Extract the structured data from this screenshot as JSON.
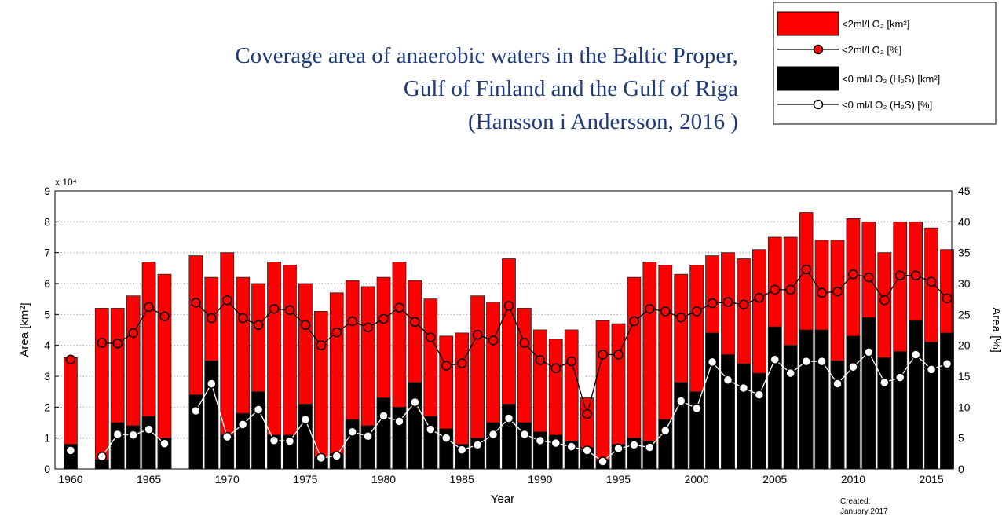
{
  "chart_data": {
    "type": "bar",
    "title": [
      "Coverage area of anaerobic waters in the Baltic Proper,",
      "Gulf of Finland and the Gulf of Riga",
      "(Hansson i Andersson, 2016 )"
    ],
    "x": [
      1960,
      1961,
      1962,
      1963,
      1964,
      1965,
      1966,
      1967,
      1968,
      1969,
      1970,
      1971,
      1972,
      1973,
      1974,
      1975,
      1976,
      1977,
      1978,
      1979,
      1980,
      1981,
      1982,
      1983,
      1984,
      1985,
      1986,
      1987,
      1988,
      1989,
      1990,
      1991,
      1992,
      1993,
      1994,
      1995,
      1996,
      1997,
      1998,
      1999,
      2000,
      2001,
      2002,
      2003,
      2004,
      2005,
      2006,
      2007,
      2008,
      2009,
      2010,
      2011,
      2012,
      2013,
      2014,
      2015,
      2016
    ],
    "series": [
      {
        "name": "<2ml/l O₂ [km²]",
        "type": "bar",
        "color": "#ff0000",
        "axis": "y",
        "values": [
          3.6,
          null,
          5.2,
          5.2,
          5.6,
          6.7,
          6.3,
          null,
          6.9,
          6.2,
          7.0,
          6.2,
          6.0,
          6.7,
          6.6,
          6.0,
          5.1,
          5.7,
          6.1,
          5.9,
          6.2,
          6.7,
          6.1,
          5.5,
          4.3,
          4.4,
          5.6,
          5.4,
          6.8,
          5.2,
          4.5,
          4.2,
          4.5,
          2.3,
          4.8,
          4.7,
          6.2,
          6.7,
          6.6,
          6.3,
          6.6,
          6.9,
          7.0,
          6.8,
          7.1,
          7.5,
          7.5,
          8.3,
          7.4,
          7.4,
          8.1,
          8.0,
          7.0,
          8.0,
          8.0,
          7.8,
          7.1
        ]
      },
      {
        "name": "<2ml/l O₂ [%]",
        "type": "line",
        "color": "#ff0000",
        "axis": "y2",
        "values": [
          17.7,
          null,
          20.4,
          20.3,
          22.0,
          26.2,
          24.7,
          null,
          26.9,
          24.4,
          27.3,
          24.4,
          23.3,
          25.9,
          25.7,
          23.3,
          20.0,
          22.1,
          23.9,
          22.9,
          24.3,
          26.1,
          23.8,
          21.3,
          16.7,
          17.1,
          21.7,
          20.8,
          26.4,
          20.4,
          17.6,
          16.3,
          17.4,
          8.9,
          18.5,
          18.5,
          23.9,
          25.9,
          25.5,
          24.5,
          25.5,
          26.8,
          27.0,
          26.6,
          27.7,
          29.0,
          29.0,
          32.3,
          28.5,
          28.7,
          31.5,
          31.0,
          27.3,
          31.3,
          31.3,
          30.3,
          27.6
        ]
      },
      {
        "name": "<0 ml/l O₂ (H₂S) [km²]",
        "type": "bar",
        "color": "#000000",
        "axis": "y",
        "values": [
          0.8,
          null,
          0.3,
          1.5,
          1.4,
          1.7,
          1.0,
          null,
          2.4,
          3.5,
          1.1,
          1.8,
          2.5,
          1.1,
          1.1,
          2.1,
          0.4,
          0.5,
          1.6,
          1.4,
          2.3,
          2.0,
          2.8,
          1.7,
          1.3,
          0.8,
          1.0,
          1.5,
          2.1,
          1.5,
          1.2,
          1.1,
          0.9,
          0.7,
          0.3,
          0.8,
          1.0,
          0.9,
          1.6,
          2.8,
          2.5,
          4.4,
          3.7,
          3.4,
          3.1,
          4.6,
          4.0,
          4.5,
          4.5,
          3.5,
          4.3,
          4.9,
          3.6,
          3.8,
          4.8,
          4.1,
          4.4
        ]
      },
      {
        "name": "<0 ml/l O₂ (H₂S) [%]",
        "type": "line",
        "color": "#ffffff",
        "axis": "y2",
        "values": [
          3.0,
          null,
          2.0,
          5.6,
          5.5,
          6.4,
          4.1,
          null,
          9.4,
          13.8,
          5.2,
          7.2,
          9.6,
          4.6,
          4.5,
          8.0,
          1.8,
          2.1,
          6.0,
          5.3,
          8.6,
          7.7,
          10.8,
          6.4,
          5.0,
          3.1,
          3.9,
          5.6,
          8.2,
          5.6,
          4.6,
          4.2,
          3.6,
          3.0,
          1.2,
          3.3,
          3.9,
          3.5,
          6.2,
          11.0,
          9.8,
          17.3,
          14.4,
          13.1,
          12.0,
          17.7,
          15.5,
          17.4,
          17.4,
          13.8,
          16.5,
          18.9,
          14.0,
          14.8,
          18.5,
          16.1,
          17.0
        ]
      }
    ],
    "xlim": [
      1959,
      2016.3
    ],
    "xticks": [
      1960,
      1965,
      1970,
      1975,
      1980,
      1985,
      1990,
      1995,
      2000,
      2005,
      2010,
      2015
    ],
    "ylim": [
      0,
      9
    ],
    "yticks": [
      0,
      1,
      2,
      3,
      4,
      5,
      6,
      7,
      8,
      9
    ],
    "y_multiplier": "x 10⁴",
    "y2lim": [
      0,
      45
    ],
    "y2ticks": [
      0,
      5,
      10,
      15,
      20,
      25,
      30,
      35,
      40,
      45
    ],
    "xlabel": "Year",
    "ylabel": "Area [km²]",
    "y2label": "Area [%]",
    "grid": true,
    "legend": "upper right",
    "note": [
      "Created:",
      "January 2017"
    ]
  }
}
